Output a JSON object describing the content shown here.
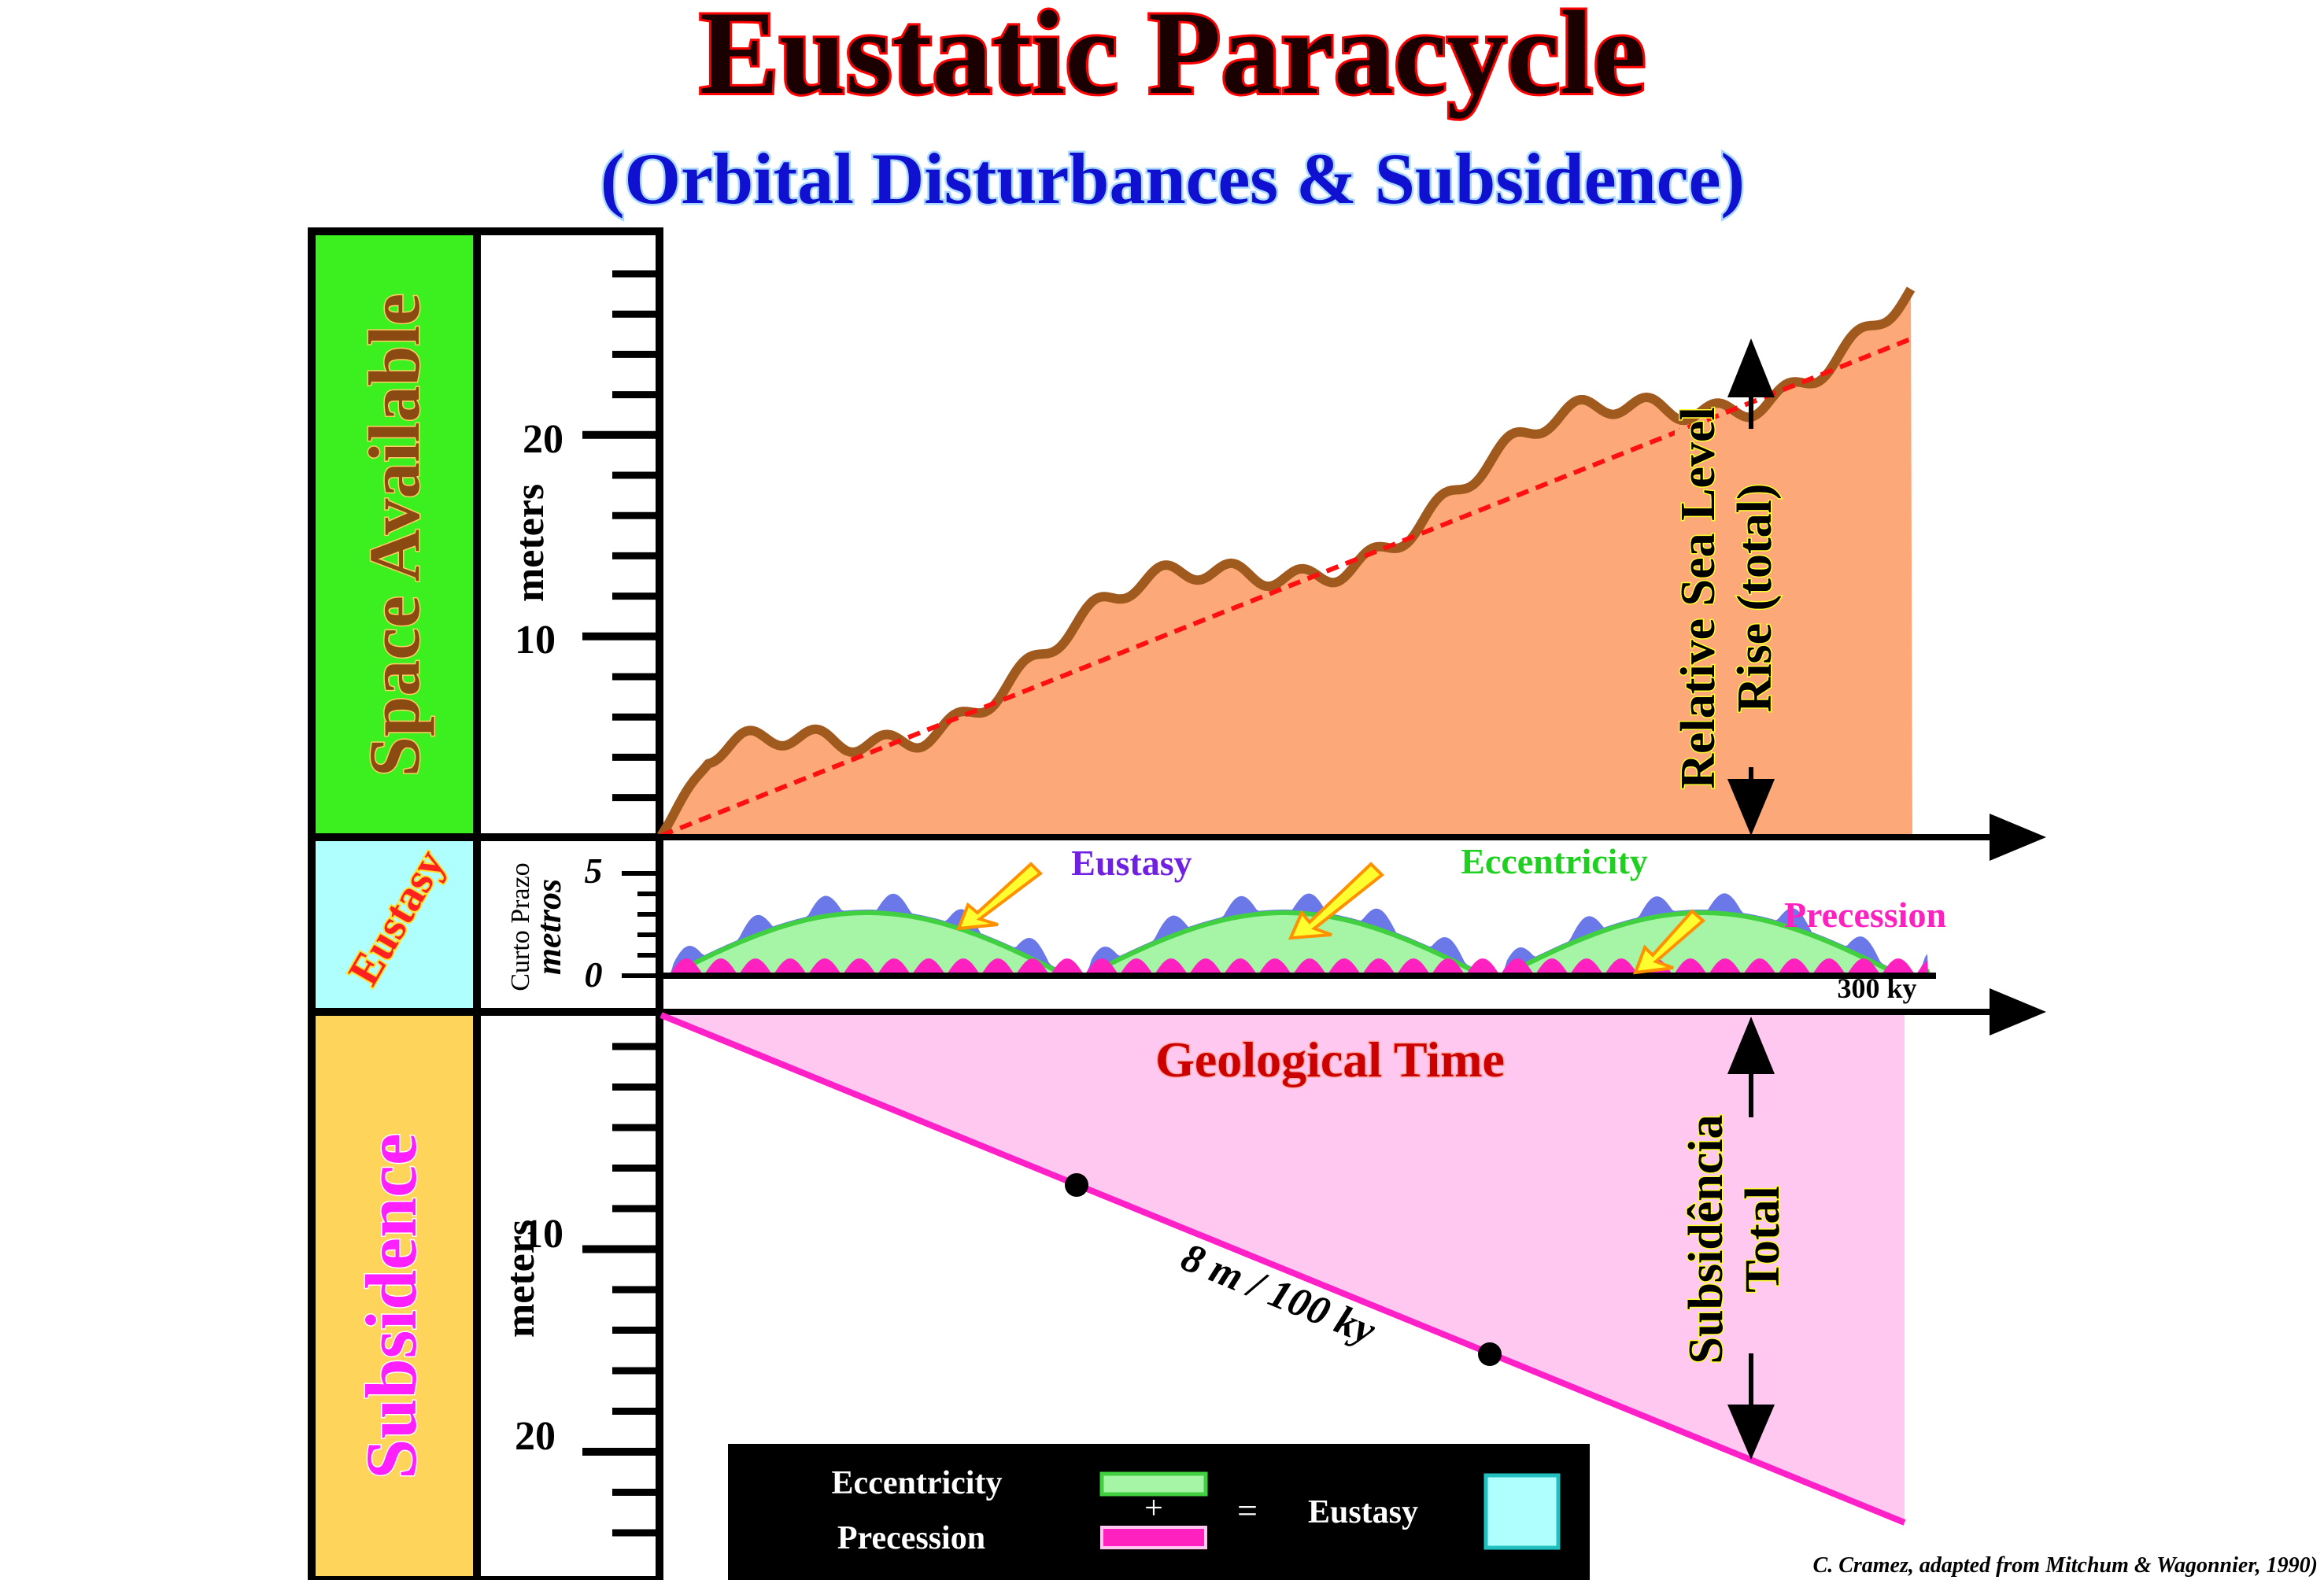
{
  "title": "Eustatic Paracycle",
  "subtitle": "(Orbital Disturbances & Subsidence)",
  "columns": {
    "space_available": "Space Available",
    "eustasy": "Eustasy",
    "subsidence": "Subsidence"
  },
  "axes": {
    "upper_units": "meters",
    "upper_ticks": [
      "20",
      "10"
    ],
    "middle_units_line1": "Curto Prazo",
    "middle_units_line2": "metros",
    "middle_ticks": [
      "5",
      "0"
    ],
    "lower_units": "meters",
    "lower_ticks": [
      "10",
      "20"
    ],
    "time_label": "Geological Time",
    "time_end_label": "300 ky"
  },
  "labels": {
    "relative_sea_level_line1": "Relative Sea Level",
    "relative_sea_level_line2": "Rise (total)",
    "eustasy_curve": "Eustasy",
    "eccentricity_curve": "Eccentricity",
    "precession_curve": "Precession",
    "subsidence_rate": "8 m / 100 ky",
    "subsidence_total_line1": "Subsidência",
    "subsidence_total_line2": "Total"
  },
  "legend": {
    "eccentricity": "Eccentricity",
    "plus": "+",
    "precession": "Precession",
    "equals": "=",
    "eustasy": "Eustasy"
  },
  "credit": "C. Cramez, adapted from Mitchum & Wagonnier, 1990)",
  "colors": {
    "title_text": "#1a0000",
    "title_outline": "#ff0000",
    "subtitle_text": "#1010d0",
    "space_available_bg": "#3cf020",
    "space_available_text": "#8b4a12",
    "eustasy_bg": "#b0ffff",
    "eustasy_text": "#ff2020",
    "subsidence_bg": "#ffd45a",
    "subsidence_text": "#ff20ff",
    "rsl_fill": "#fca878",
    "rsl_line": "#a05a1e",
    "trend_line": "#ff1010",
    "eustasy_fill": "#6a78e8",
    "eccentricity_fill": "#a6f4a6",
    "eccentricity_line": "#40d040",
    "precession_fill": "#ff20c0",
    "subsidence_fill": "#ffc8f0",
    "subsidence_line": "#ff20c8",
    "arrow_label_bg": "#ffff30"
  }
}
